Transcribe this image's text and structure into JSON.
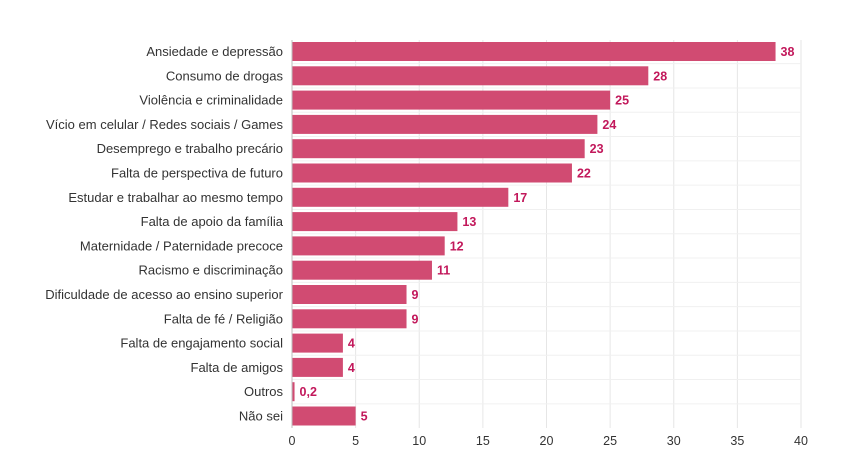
{
  "chart_data": {
    "type": "bar",
    "orientation": "horizontal",
    "categories": [
      "Ansiedade e depressão",
      "Consumo de drogas",
      "Violência e criminalidade",
      "Vício em celular / Redes sociais / Games",
      "Desemprego e trabalho precário",
      "Falta de perspectiva de futuro",
      "Estudar e trabalhar ao mesmo tempo",
      "Falta de apoio da família",
      "Maternidade / Paternidade precoce",
      "Racismo e discriminação",
      "Dificuldade de acesso ao ensino superior",
      "Falta de fé / Religião",
      "Falta de engajamento social",
      "Falta de amigos",
      "Outros",
      "Não sei"
    ],
    "values": [
      38,
      28,
      25,
      24,
      23,
      22,
      17,
      13,
      12,
      11,
      9,
      9,
      4,
      4,
      0.2,
      5
    ],
    "value_labels": [
      "38",
      "28",
      "25",
      "24",
      "23",
      "22",
      "17",
      "13",
      "12",
      "11",
      "9",
      "9",
      "4",
      "4",
      "0,2",
      "5"
    ],
    "xlim": [
      0,
      40
    ],
    "xticks": [
      0,
      5,
      10,
      15,
      20,
      25,
      30,
      35,
      40
    ],
    "grid": true,
    "colors": {
      "bar": "#d14b72",
      "value_label": "#c2185b",
      "grid": "#e6e6e6",
      "text": "#333333"
    }
  }
}
